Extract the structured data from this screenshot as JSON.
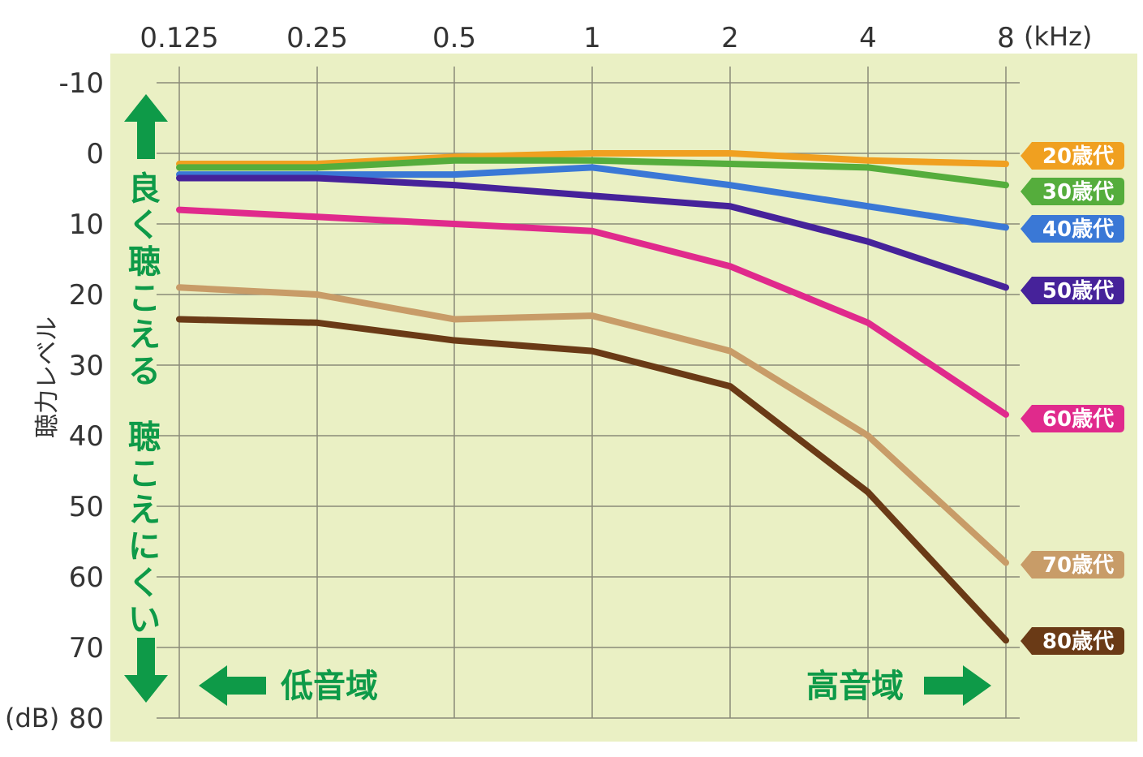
{
  "chart_data": {
    "type": "line",
    "x_unit": "(kHz)",
    "y_unit": "(dB)",
    "ylabel": "聴力レベル",
    "x": [
      "0.125",
      "0.25",
      "0.5",
      "1",
      "2",
      "4",
      "8"
    ],
    "y_ticks": [
      "-10",
      "0",
      "10",
      "20",
      "30",
      "40",
      "50",
      "60",
      "70",
      "80"
    ],
    "ylim": [
      -10,
      80
    ],
    "y_inverted": true,
    "grid": true,
    "plot_background": "#eaf0c4",
    "series": [
      {
        "name": "20歳代",
        "color": "#f0a020",
        "values": [
          1.5,
          1.5,
          0.5,
          0,
          0,
          1,
          1.5
        ]
      },
      {
        "name": "30歳代",
        "color": "#55ad3c",
        "values": [
          2,
          2,
          1,
          1,
          1.5,
          2,
          4.5
        ]
      },
      {
        "name": "40歳代",
        "color": "#3a78d6",
        "values": [
          3,
          3,
          3,
          2,
          4.5,
          7.5,
          10.5
        ]
      },
      {
        "name": "50歳代",
        "color": "#46229a",
        "values": [
          3.5,
          3.5,
          4.5,
          6,
          7.5,
          12.5,
          19
        ]
      },
      {
        "name": "60歳代",
        "color": "#e02a8c",
        "values": [
          8,
          9,
          10,
          11,
          16,
          24,
          37
        ]
      },
      {
        "name": "70歳代",
        "color": "#c89c68",
        "values": [
          19,
          20,
          23.5,
          23,
          28,
          40,
          58
        ]
      },
      {
        "name": "80歳代",
        "color": "#6a3a16",
        "values": [
          23.5,
          24,
          26.5,
          28,
          33,
          48,
          69
        ]
      }
    ],
    "annotations": {
      "good": "良く聴こえる",
      "hard": "聴こえにくい",
      "low": "低音域",
      "high": "高音域"
    }
  }
}
